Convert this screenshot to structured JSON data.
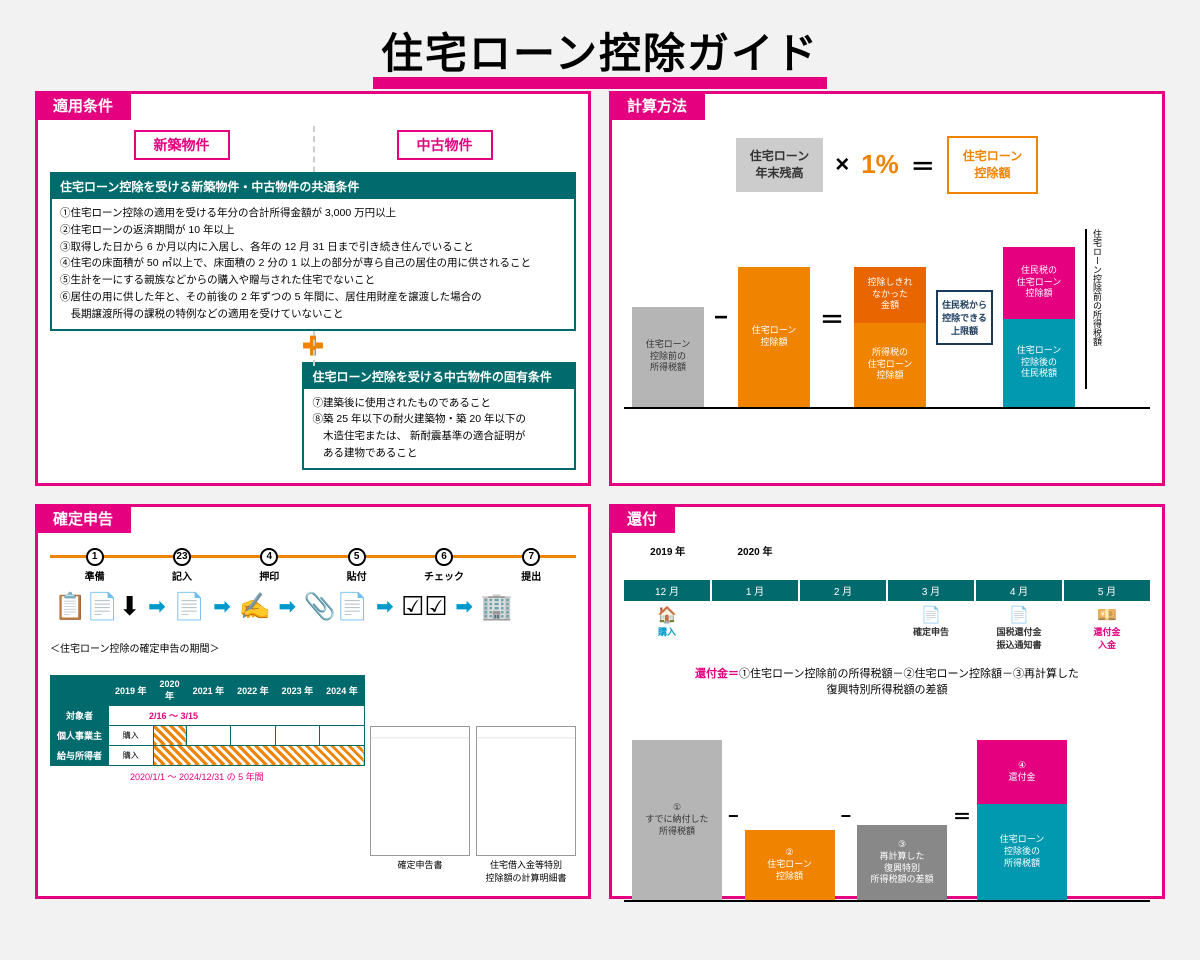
{
  "title": "住宅ローン控除ガイド",
  "panels": {
    "conditions": {
      "title": "適用条件",
      "new_tag": "新築物件",
      "used_tag": "中古物件",
      "common_header": "住宅ローン控除を受ける新築物件・中古物件の共通条件",
      "common_items": [
        "①住宅ローン控除の適用を受ける年分の合計所得金額が 3,000 万円以上",
        "②住宅ローンの返済期間が 10 年以上",
        "③取得した日から 6 か月以内に入居し、各年の 12 月 31 日まで引き続き住んでいること",
        "④住宅の床面積が 50 ㎡以上で、床面積の 2 分の 1 以上の部分が専ら自己の居住の用に供されること",
        "⑤生計を一にする親族などからの購入や贈与された住宅でないこと",
        "⑥居住の用に供した年と、その前後の 2 年ずつの 5 年間に、居住用財産を譲渡した場合の",
        "　長期譲渡所得の課税の特例などの適用を受けていないこと"
      ],
      "used_header": "住宅ローン控除を受ける中古物件の固有条件",
      "used_items": [
        "⑦建築後に使用されたものであること",
        "⑧築 25 年以下の耐火建築物・築 20 年以下の",
        "　木造住宅または、 新耐震基準の適合証明が",
        "　ある建物であること"
      ]
    },
    "calc": {
      "title": "計算方法",
      "balance": "住宅ローン\n年末残高",
      "times": "×",
      "pct": "1%",
      "eq": "＝",
      "result": "住宅ローン\n控除額",
      "bar1": "住宅ローン\n控除前の\n所得税額",
      "bar2": "住宅ローン\n控除額",
      "bar3a": "控除しきれ\nなかった\n金額",
      "bar3b": "所得税の\n住宅ローン\n控除額",
      "limit": "住民税から\n控除できる\n上限額",
      "bar4a": "住民税の\n住宅ローン\n控除額",
      "bar4b": "住宅ローン\n控除後の\n住民税額",
      "side": "住宅ローン控除前の所得税額",
      "colors": {
        "gray": "#b5b5b5",
        "orange": "#f08300",
        "darkorange": "#e96500",
        "pink": "#e4007f",
        "teal": "#0099b0",
        "navy": "#1a3a5c"
      }
    },
    "filing": {
      "title": "確定申告",
      "steps": [
        {
          "n": "1",
          "l": "準備"
        },
        {
          "n": "23",
          "l": "記入"
        },
        {
          "n": "4",
          "l": "押印"
        },
        {
          "n": "5",
          "l": "貼付"
        },
        {
          "n": "6",
          "l": "チェック"
        },
        {
          "n": "7",
          "l": "提出"
        }
      ],
      "period_title": "＜住宅ローン控除の確定申告の期間＞",
      "years": [
        "2019 年",
        "2020 年",
        "2021 年",
        "2022 年",
        "2023 年",
        "2024 年"
      ],
      "rows": [
        "対象者",
        "個人事業主",
        "給与所得者"
      ],
      "date1": "2/16 ～ 3/15",
      "date2": "2020/1/1 ～ 2024/12/31 の 5 年間",
      "doc1": "確定申告書",
      "doc2": "住宅借入金等特別\n控除額の計算明細書",
      "buy": "購入"
    },
    "refund": {
      "title": "還付",
      "y1": "2019 年",
      "y2": "2020 年",
      "months": [
        "12 月",
        "1 月",
        "2 月",
        "3 月",
        "4 月",
        "5 月"
      ],
      "events": [
        {
          "icon": "🏠",
          "l": "購入",
          "c": "#0099cc"
        },
        {
          "icon": "",
          "l": ""
        },
        {
          "icon": "",
          "l": ""
        },
        {
          "icon": "📄",
          "l": "確定申告",
          "c": "#333"
        },
        {
          "icon": "📄",
          "l": "国税還付金\n振込通知書",
          "c": "#333"
        },
        {
          "icon": "💴",
          "l": "還付金\n入金",
          "c": "#e4007f"
        }
      ],
      "formula_hl": "還付金＝",
      "formula": "①住宅ローン控除前の所得税額－②住宅ローン控除額－③再計算した\n復興特別所得税額の差額",
      "b1": "①\nすでに納付した\n所得税額",
      "b2": "②\n住宅ローン\n控除額",
      "b3": "③\n再計算した\n復興特別\n所得税額の差額",
      "b4a": "④\n還付金",
      "b4b": "住宅ローン\n控除後の\n所得税額"
    }
  }
}
